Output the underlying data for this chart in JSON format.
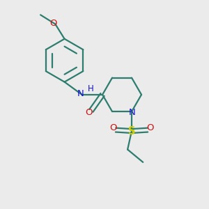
{
  "background_color": "#ebebeb",
  "bond_color": "#2d7d6e",
  "N_color": "#1414cc",
  "O_color": "#cc1414",
  "S_color": "#cccc00",
  "line_width": 1.6,
  "figsize": [
    3.0,
    3.0
  ],
  "dpi": 100,
  "xlim": [
    0,
    10
  ],
  "ylim": [
    0,
    10
  ]
}
